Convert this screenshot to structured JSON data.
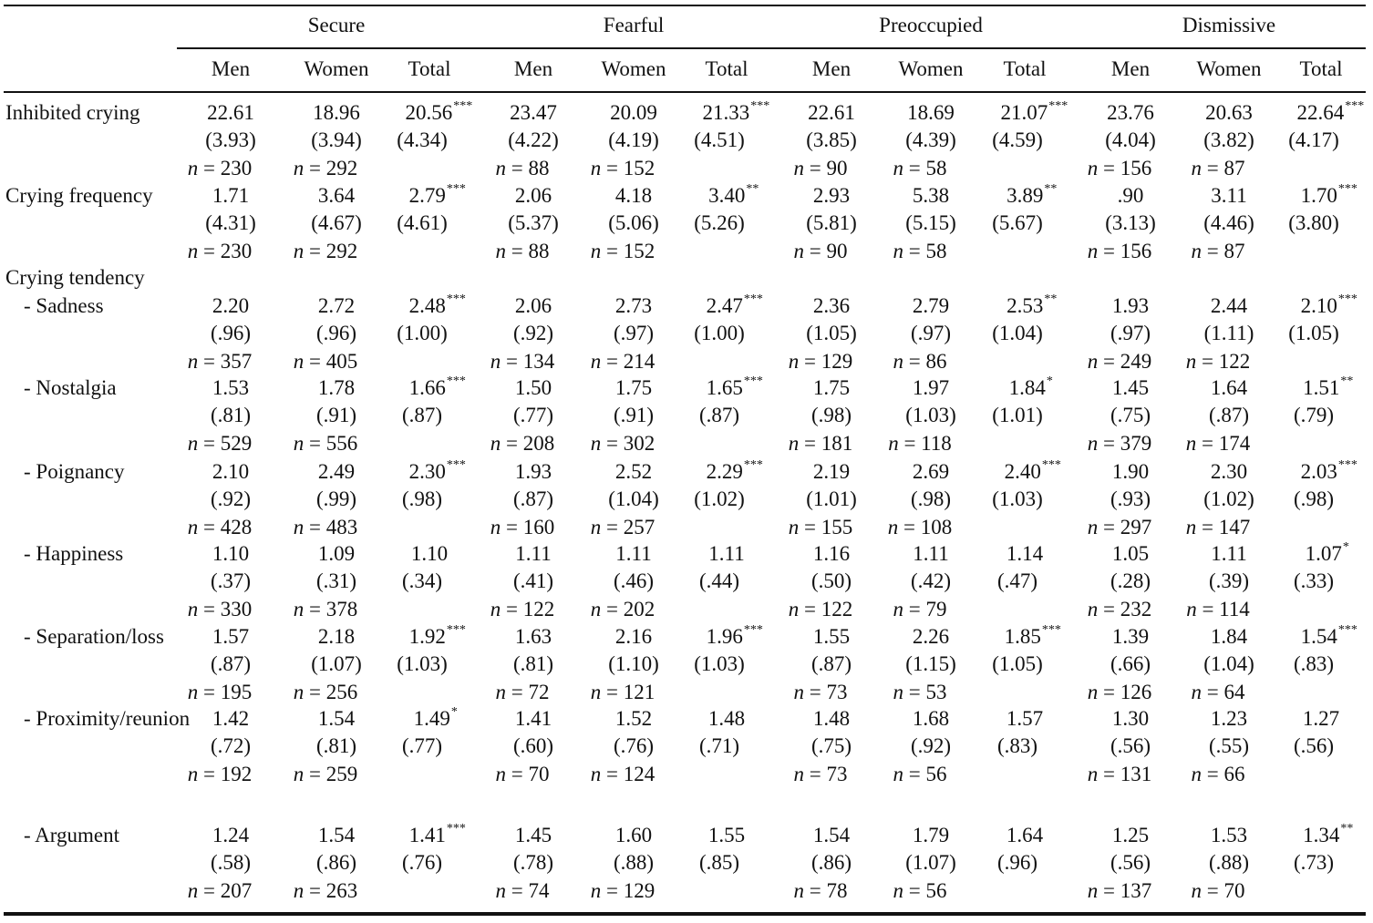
{
  "table": {
    "groups": [
      "Secure",
      "Fearful",
      "Preoccupied",
      "Dismissive"
    ],
    "subcols": [
      "Men",
      "Women",
      "Total"
    ],
    "n_prefix": "n",
    "n_eq": " = ",
    "section_label": "Crying tendency",
    "rows": [
      {
        "label": "Inhibited crying",
        "cells": [
          {
            "men": [
              "22.61",
              "(3.93)",
              "230"
            ],
            "women": [
              "18.96",
              "(3.94)",
              "292"
            ],
            "total": [
              "20.56",
              "(4.34)"
            ],
            "sig": "***"
          },
          {
            "men": [
              "23.47",
              "(4.22)",
              "88"
            ],
            "women": [
              "20.09",
              "(4.19)",
              "152"
            ],
            "total": [
              "21.33",
              "(4.51)"
            ],
            "sig": "***"
          },
          {
            "men": [
              "22.61",
              "(3.85)",
              "90"
            ],
            "women": [
              "18.69",
              "(4.39)",
              "58"
            ],
            "total": [
              "21.07",
              "(4.59)"
            ],
            "sig": "***"
          },
          {
            "men": [
              "23.76",
              "(4.04)",
              "156"
            ],
            "women": [
              "20.63",
              "(3.82)",
              "87"
            ],
            "total": [
              "22.64",
              "(4.17)"
            ],
            "sig": "***"
          }
        ]
      },
      {
        "label": "Crying frequency",
        "cells": [
          {
            "men": [
              "1.71",
              "(4.31)",
              "230"
            ],
            "women": [
              "3.64",
              "(4.67)",
              "292"
            ],
            "total": [
              "2.79",
              "(4.61)"
            ],
            "sig": "***"
          },
          {
            "men": [
              "2.06",
              "(5.37)",
              "88"
            ],
            "women": [
              "4.18",
              "(5.06)",
              "152"
            ],
            "total": [
              "3.40",
              "(5.26)"
            ],
            "sig": "**"
          },
          {
            "men": [
              "2.93",
              "(5.81)",
              "90"
            ],
            "women": [
              "5.38",
              "(5.15)",
              "58"
            ],
            "total": [
              "3.89",
              "(5.67)"
            ],
            "sig": "**"
          },
          {
            "men": [
              ".90",
              "(3.13)",
              "156"
            ],
            "women": [
              "3.11",
              "(4.46)",
              "87"
            ],
            "total": [
              "1.70",
              "(3.80)"
            ],
            "sig": "***"
          }
        ]
      },
      {
        "label": "- Sadness",
        "cells": [
          {
            "men": [
              "2.20",
              "(.96)",
              "357"
            ],
            "women": [
              "2.72",
              "(.96)",
              "405"
            ],
            "total": [
              "2.48",
              "(1.00)"
            ],
            "sig": "***"
          },
          {
            "men": [
              "2.06",
              "(.92)",
              "134"
            ],
            "women": [
              "2.73",
              "(.97)",
              "214"
            ],
            "total": [
              "2.47",
              "(1.00)"
            ],
            "sig": "***"
          },
          {
            "men": [
              "2.36",
              "(1.05)",
              "129"
            ],
            "women": [
              "2.79",
              "(.97)",
              "86"
            ],
            "total": [
              "2.53",
              "(1.04)"
            ],
            "sig": "**"
          },
          {
            "men": [
              "1.93",
              "(.97)",
              "249"
            ],
            "women": [
              "2.44",
              "(1.11)",
              "122"
            ],
            "total": [
              "2.10",
              "(1.05)"
            ],
            "sig": "***"
          }
        ]
      },
      {
        "label": "- Nostalgia",
        "cells": [
          {
            "men": [
              "1.53",
              "(.81)",
              "529"
            ],
            "women": [
              "1.78",
              "(.91)",
              "556"
            ],
            "total": [
              "1.66",
              "(.87)"
            ],
            "sig": "***"
          },
          {
            "men": [
              "1.50",
              "(.77)",
              "208"
            ],
            "women": [
              "1.75",
              "(.91)",
              "302"
            ],
            "total": [
              "1.65",
              "(.87)"
            ],
            "sig": "***"
          },
          {
            "men": [
              "1.75",
              "(.98)",
              "181"
            ],
            "women": [
              "1.97",
              "(1.03)",
              "118"
            ],
            "total": [
              "1.84",
              "(1.01)"
            ],
            "sig": "*"
          },
          {
            "men": [
              "1.45",
              "(.75)",
              "379"
            ],
            "women": [
              "1.64",
              "(.87)",
              "174"
            ],
            "total": [
              "1.51",
              "(.79)"
            ],
            "sig": "**"
          }
        ]
      },
      {
        "label": "- Poignancy",
        "cells": [
          {
            "men": [
              "2.10",
              "(.92)",
              "428"
            ],
            "women": [
              "2.49",
              "(.99)",
              "483"
            ],
            "total": [
              "2.30",
              "(.98)"
            ],
            "sig": "***"
          },
          {
            "men": [
              "1.93",
              "(.87)",
              "160"
            ],
            "women": [
              "2.52",
              "(1.04)",
              "257"
            ],
            "total": [
              "2.29",
              "(1.02)"
            ],
            "sig": "***"
          },
          {
            "men": [
              "2.19",
              "(1.01)",
              "155"
            ],
            "women": [
              "2.69",
              "(.98)",
              "108"
            ],
            "total": [
              "2.40",
              "(1.03)"
            ],
            "sig": "***"
          },
          {
            "men": [
              "1.90",
              "(.93)",
              "297"
            ],
            "women": [
              "2.30",
              "(1.02)",
              "147"
            ],
            "total": [
              "2.03",
              "(.98)"
            ],
            "sig": "***"
          }
        ]
      },
      {
        "label": "- Happiness",
        "cells": [
          {
            "men": [
              "1.10",
              "(.37)",
              "330"
            ],
            "women": [
              "1.09",
              "(.31)",
              "378"
            ],
            "total": [
              "1.10",
              "(.34)"
            ],
            "sig": ""
          },
          {
            "men": [
              "1.11",
              "(.41)",
              "122"
            ],
            "women": [
              "1.11",
              "(.46)",
              "202"
            ],
            "total": [
              "1.11",
              "(.44)"
            ],
            "sig": ""
          },
          {
            "men": [
              "1.16",
              "(.50)",
              "122"
            ],
            "women": [
              "1.11",
              "(.42)",
              "79"
            ],
            "total": [
              "1.14",
              "(.47)"
            ],
            "sig": ""
          },
          {
            "men": [
              "1.05",
              "(.28)",
              "232"
            ],
            "women": [
              "1.11",
              "(.39)",
              "114"
            ],
            "total": [
              "1.07",
              "(.33)"
            ],
            "sig": "*"
          }
        ]
      },
      {
        "label": "- Separation/loss",
        "cells": [
          {
            "men": [
              "1.57",
              "(.87)",
              "195"
            ],
            "women": [
              "2.18",
              "(1.07)",
              "256"
            ],
            "total": [
              "1.92",
              "(1.03)"
            ],
            "sig": "***"
          },
          {
            "men": [
              "1.63",
              "(.81)",
              "72"
            ],
            "women": [
              "2.16",
              "(1.10)",
              "121"
            ],
            "total": [
              "1.96",
              "(1.03)"
            ],
            "sig": "***"
          },
          {
            "men": [
              "1.55",
              "(.87)",
              "73"
            ],
            "women": [
              "2.26",
              "(1.15)",
              "53"
            ],
            "total": [
              "1.85",
              "(1.05)"
            ],
            "sig": "***"
          },
          {
            "men": [
              "1.39",
              "(.66)",
              "126"
            ],
            "women": [
              "1.84",
              "(1.04)",
              "64"
            ],
            "total": [
              "1.54",
              "(.83)"
            ],
            "sig": "***"
          }
        ]
      },
      {
        "label": "- Proximity/reunion",
        "cells": [
          {
            "men": [
              "1.42",
              "(.72)",
              "192"
            ],
            "women": [
              "1.54",
              "(.81)",
              "259"
            ],
            "total": [
              "1.49",
              "(.77)"
            ],
            "sig": "*"
          },
          {
            "men": [
              "1.41",
              "(.60)",
              "70"
            ],
            "women": [
              "1.52",
              "(.76)",
              "124"
            ],
            "total": [
              "1.48",
              "(.71)"
            ],
            "sig": ""
          },
          {
            "men": [
              "1.48",
              "(.75)",
              "73"
            ],
            "women": [
              "1.68",
              "(.92)",
              "56"
            ],
            "total": [
              "1.57",
              "(.83)"
            ],
            "sig": ""
          },
          {
            "men": [
              "1.30",
              "(.56)",
              "131"
            ],
            "women": [
              "1.23",
              "(.55)",
              "66"
            ],
            "total": [
              "1.27",
              "(.56)"
            ],
            "sig": ""
          }
        ]
      },
      {
        "label": "- Argument",
        "cells": [
          {
            "men": [
              "1.24",
              "(.58)",
              "207"
            ],
            "women": [
              "1.54",
              "(.86)",
              "263"
            ],
            "total": [
              "1.41",
              "(.76)"
            ],
            "sig": "***"
          },
          {
            "men": [
              "1.45",
              "(.78)",
              "74"
            ],
            "women": [
              "1.60",
              "(.88)",
              "129"
            ],
            "total": [
              "1.55",
              "(.85)"
            ],
            "sig": ""
          },
          {
            "men": [
              "1.54",
              "(.86)",
              "78"
            ],
            "women": [
              "1.79",
              "(1.07)",
              "56"
            ],
            "total": [
              "1.64",
              "(.96)"
            ],
            "sig": ""
          },
          {
            "men": [
              "1.25",
              "(.56)",
              "137"
            ],
            "women": [
              "1.53",
              "(.88)",
              "70"
            ],
            "total": [
              "1.34",
              "(.73)"
            ],
            "sig": "**"
          }
        ]
      }
    ]
  }
}
